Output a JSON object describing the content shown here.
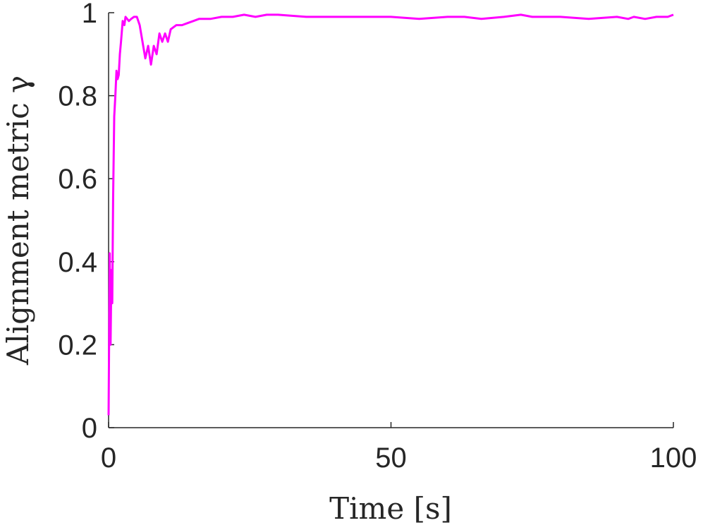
{
  "chart_data": {
    "type": "line",
    "xlabel": "Time [s]",
    "ylabel": "Alignment metric γ",
    "xlim": [
      0,
      100
    ],
    "ylim": [
      0,
      1
    ],
    "xticks": [
      0,
      50,
      100
    ],
    "yticks": [
      0,
      0.2,
      0.4,
      0.6,
      0.8,
      1
    ],
    "xtick_labels": [
      "0",
      "50",
      "100"
    ],
    "ytick_labels": [
      "0",
      "0.2",
      "0.4",
      "0.6",
      "0.8",
      "1"
    ],
    "grid": false,
    "series": [
      {
        "color": "#ff00ff",
        "x": [
          0,
          0.2,
          0.35,
          0.5,
          0.65,
          0.8,
          1.0,
          1.2,
          1.4,
          1.6,
          1.8,
          2.0,
          2.2,
          2.5,
          2.8,
          3.0,
          3.3,
          3.6,
          4.0,
          4.5,
          5.0,
          5.5,
          6.0,
          6.5,
          7.0,
          7.5,
          8.0,
          8.5,
          9.0,
          9.5,
          10.0,
          10.5,
          11.0,
          12.0,
          13.0,
          14.0,
          15.0,
          16.0,
          18.0,
          20.0,
          22.0,
          24.0,
          26.0,
          28.0,
          30.0,
          35.0,
          40.0,
          45.0,
          50.0,
          55.0,
          60.0,
          63.0,
          66.0,
          70.0,
          73.0,
          75.0,
          80.0,
          85.0,
          90.0,
          92.0,
          93.0,
          95.0,
          97.0,
          99.0,
          100.0
        ],
        "y": [
          0.03,
          0.42,
          0.2,
          0.38,
          0.3,
          0.55,
          0.75,
          0.8,
          0.86,
          0.84,
          0.85,
          0.9,
          0.93,
          0.98,
          0.97,
          0.99,
          0.985,
          0.98,
          0.985,
          0.99,
          0.99,
          0.97,
          0.93,
          0.89,
          0.92,
          0.875,
          0.92,
          0.9,
          0.95,
          0.93,
          0.95,
          0.93,
          0.96,
          0.97,
          0.97,
          0.975,
          0.98,
          0.985,
          0.985,
          0.99,
          0.99,
          0.995,
          0.99,
          0.995,
          0.995,
          0.99,
          0.99,
          0.99,
          0.99,
          0.985,
          0.99,
          0.99,
          0.985,
          0.99,
          0.995,
          0.99,
          0.99,
          0.985,
          0.99,
          0.985,
          0.99,
          0.985,
          0.99,
          0.99,
          0.995
        ]
      }
    ]
  }
}
